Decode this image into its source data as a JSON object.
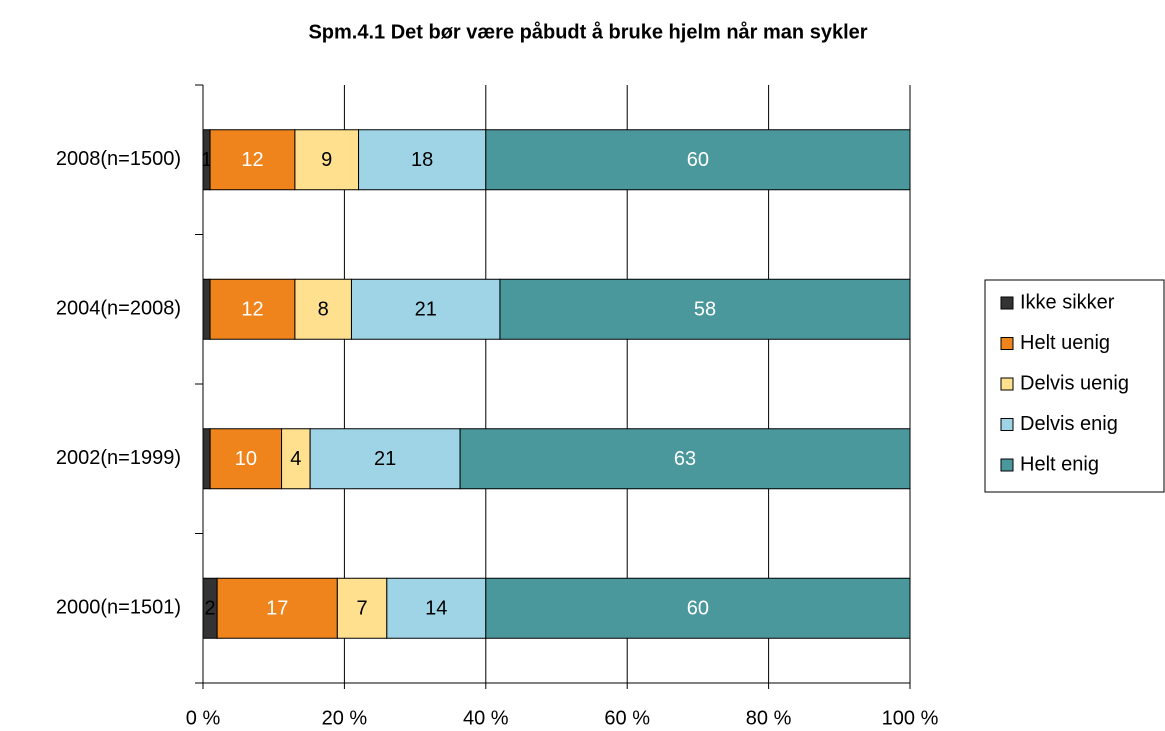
{
  "chart_data": {
    "type": "stacked100_barh",
    "title": "Spm.4.1 Det bør være påbudt å bruke hjelm når man sykler",
    "categories": [
      "2008(n=1500)",
      "2004(n=2008)",
      "2002(n=1999)",
      "2000(n=1501)"
    ],
    "series": [
      {
        "name": "Ikke sikker",
        "color": "#333333",
        "label_color": "#000000",
        "values": [
          1,
          1,
          1,
          2
        ],
        "value_labels": [
          "1",
          null,
          null,
          "2"
        ]
      },
      {
        "name": "Helt uenig",
        "color": "#f0841c",
        "label_color": "#ffffff",
        "values": [
          12,
          12,
          10,
          17
        ]
      },
      {
        "name": "Delvis uenig",
        "color": "#ffe08f",
        "label_color": "#000000",
        "values": [
          9,
          8,
          4,
          7
        ]
      },
      {
        "name": "Delvis enig",
        "color": "#9fd3e6",
        "label_color": "#000000",
        "values": [
          18,
          21,
          21,
          14
        ]
      },
      {
        "name": "Helt enig",
        "color": "#4a979c",
        "label_color": "#ffffff",
        "values": [
          60,
          58,
          63,
          60
        ]
      }
    ],
    "xlim": [
      0,
      100
    ],
    "xticks": [
      {
        "value": 0,
        "label": "0 %"
      },
      {
        "value": 20,
        "label": "20 %"
      },
      {
        "value": 40,
        "label": "40 %"
      },
      {
        "value": 60,
        "label": "60 %"
      },
      {
        "value": 80,
        "label": "80 %"
      },
      {
        "value": 100,
        "label": "100 %"
      }
    ],
    "grid": true,
    "legend": "right"
  }
}
